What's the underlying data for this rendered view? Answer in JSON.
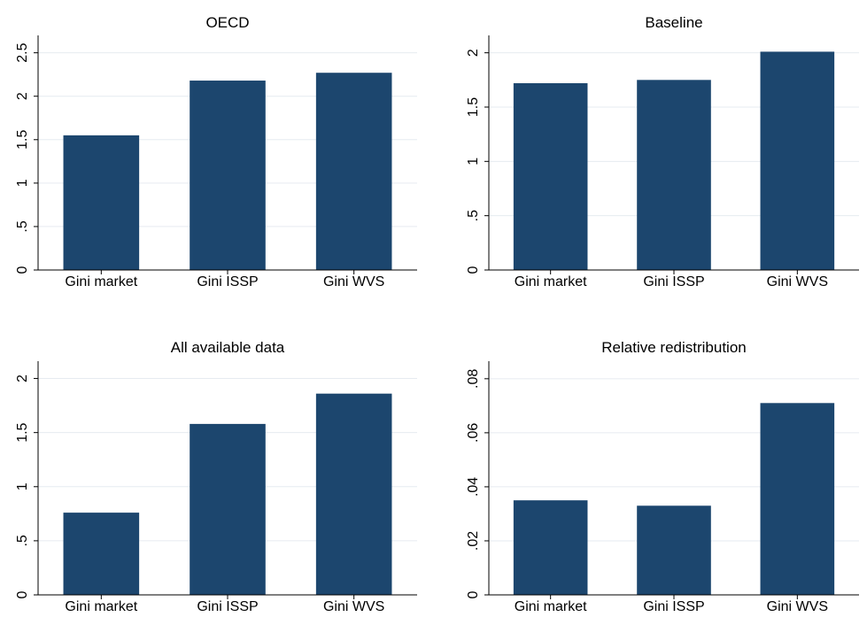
{
  "chart_data": [
    {
      "type": "bar",
      "title": "OECD",
      "categories": [
        "Gini market",
        "Gini ISSP",
        "Gini WVS"
      ],
      "values": [
        1.55,
        2.18,
        2.27
      ],
      "ylim": [
        0,
        2.7
      ],
      "yticks": [
        {
          "value": 0,
          "label": "0"
        },
        {
          "value": 0.5,
          "label": ".5"
        },
        {
          "value": 1,
          "label": "1"
        },
        {
          "value": 1.5,
          "label": "1.5"
        },
        {
          "value": 2,
          "label": "2"
        },
        {
          "value": 2.5,
          "label": "2.5"
        }
      ],
      "xlabel": "",
      "ylabel": "",
      "grid": true,
      "bar_color": "#1c466e"
    },
    {
      "type": "bar",
      "title": "Baseline",
      "categories": [
        "Gini market",
        "Gini ISSP",
        "Gini WVS"
      ],
      "values": [
        1.72,
        1.75,
        2.01
      ],
      "ylim": [
        0,
        2.16
      ],
      "yticks": [
        {
          "value": 0,
          "label": "0"
        },
        {
          "value": 0.5,
          "label": ".5"
        },
        {
          "value": 1,
          "label": "1"
        },
        {
          "value": 1.5,
          "label": "1.5"
        },
        {
          "value": 2,
          "label": "2"
        }
      ],
      "xlabel": "",
      "ylabel": "",
      "grid": true,
      "bar_color": "#1c466e"
    },
    {
      "type": "bar",
      "title": "All available data",
      "categories": [
        "Gini market",
        "Gini ISSP",
        "Gini WVS"
      ],
      "values": [
        0.76,
        1.58,
        1.86
      ],
      "ylim": [
        0,
        2.16
      ],
      "yticks": [
        {
          "value": 0,
          "label": "0"
        },
        {
          "value": 0.5,
          "label": ".5"
        },
        {
          "value": 1,
          "label": "1"
        },
        {
          "value": 1.5,
          "label": "1.5"
        },
        {
          "value": 2,
          "label": "2"
        }
      ],
      "xlabel": "",
      "ylabel": "",
      "grid": true,
      "bar_color": "#1c466e"
    },
    {
      "type": "bar",
      "title": "Relative redistribution",
      "categories": [
        "Gini market",
        "Gini ISSP",
        "Gini WVS"
      ],
      "values": [
        0.035,
        0.033,
        0.071
      ],
      "ylim": [
        0,
        0.0865
      ],
      "yticks": [
        {
          "value": 0,
          "label": "0"
        },
        {
          "value": 0.02,
          "label": ".02"
        },
        {
          "value": 0.04,
          "label": ".04"
        },
        {
          "value": 0.06,
          "label": ".06"
        },
        {
          "value": 0.08,
          "label": ".08"
        }
      ],
      "xlabel": "",
      "ylabel": "",
      "grid": true,
      "bar_color": "#1c466e"
    }
  ]
}
